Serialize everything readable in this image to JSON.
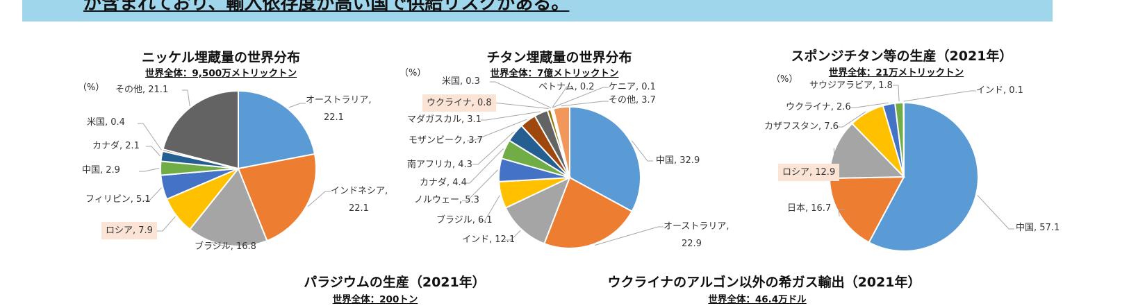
{
  "banner": {
    "text": "が含まれており、輸入依存度が高い国で供給リスクがある。"
  },
  "chart_data": [
    {
      "type": "pie",
      "title": "ニッケル埋蔵量の世界分布",
      "subtitle": "世界全体：9,500万メトリックトン",
      "unit": "（%）",
      "categories": [
        "オーストラリア",
        "インドネシア",
        "ブラジル",
        "ロシア",
        "フィリピン",
        "中国",
        "カナダ",
        "米国",
        "その他"
      ],
      "values": [
        22.1,
        22.1,
        16.8,
        7.9,
        5.1,
        2.9,
        2.1,
        0.4,
        21.1
      ],
      "colors": [
        "#5b9bd5",
        "#ed7d31",
        "#a5a5a5",
        "#ffc000",
        "#4472c4",
        "#70ad47",
        "#255e91",
        "#9e480e",
        "#636363"
      ],
      "highlight": "ロシア"
    },
    {
      "type": "pie",
      "title": "チタン埋蔵量の世界分布",
      "subtitle": "世界全体：7億メトリックトン",
      "unit": "（%）",
      "categories": [
        "中国",
        "オーストラリア",
        "インド",
        "ブラジル",
        "ノルウェー",
        "カナダ",
        "南アフリカ",
        "モザンビーク",
        "マダガスカル",
        "ウクライナ",
        "米国",
        "ベトナム",
        "ケニア",
        "その他"
      ],
      "values": [
        32.9,
        22.9,
        12.1,
        6.1,
        5.3,
        4.4,
        4.3,
        3.7,
        3.1,
        0.8,
        0.3,
        0.2,
        0.1,
        3.7
      ],
      "colors": [
        "#5b9bd5",
        "#ed7d31",
        "#a5a5a5",
        "#ffc000",
        "#4472c4",
        "#70ad47",
        "#255e91",
        "#9e480e",
        "#636363",
        "#997300",
        "#264478",
        "#43682b",
        "#7cafdd",
        "#f1975a"
      ],
      "highlight": "ウクライナ"
    },
    {
      "type": "pie",
      "title": "スポンジチタン等の生産（2021年）",
      "subtitle": "世界全体：21万メトリックトン",
      "unit": "（%）",
      "categories": [
        "中国",
        "日本",
        "ロシア",
        "カザフスタン",
        "ウクライナ",
        "サウジアラビア",
        "インド"
      ],
      "values": [
        57.1,
        16.7,
        12.9,
        7.6,
        2.6,
        1.8,
        0.1
      ],
      "colors": [
        "#5b9bd5",
        "#ed7d31",
        "#a5a5a5",
        "#ffc000",
        "#4472c4",
        "#70ad47",
        "#255e91"
      ],
      "highlight": "ロシア"
    },
    {
      "type": "pie",
      "title": "パラジウムの生産（2021年）",
      "subtitle": "世界全体：200トン"
    },
    {
      "type": "pie",
      "title": "ウクライナのアルゴン以外の希ガス輸出（2021年）",
      "subtitle": "世界全体：46.4万ドル"
    }
  ]
}
